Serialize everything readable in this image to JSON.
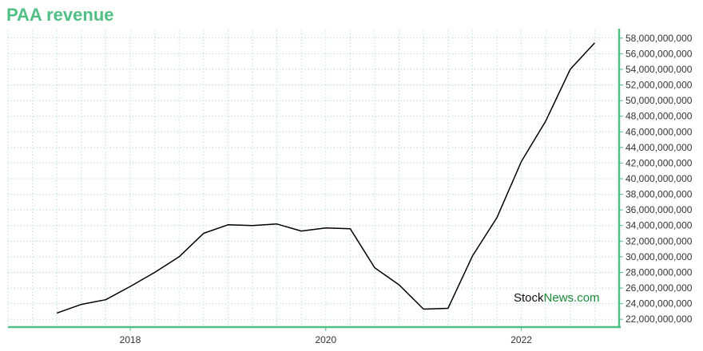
{
  "title": "PAA revenue",
  "watermark": {
    "part1": "Stock",
    "part2": "News.com"
  },
  "colors": {
    "axis": "#4fbf84",
    "grid": "#9fd9cf",
    "line": "#000000",
    "title": "#4fbf84"
  },
  "chart_data": {
    "type": "line",
    "title": "PAA revenue",
    "xlabel": "",
    "ylabel": "",
    "x_tick_labels": [
      "2018",
      "2020",
      "2022"
    ],
    "x_ticks": [
      2018.0,
      2020.0,
      2022.0
    ],
    "xlim": [
      2016.75,
      2023.0
    ],
    "ylim": [
      21000000000,
      59000000000
    ],
    "y_ticks": [
      22000000000,
      24000000000,
      26000000000,
      28000000000,
      30000000000,
      32000000000,
      34000000000,
      36000000000,
      38000000000,
      40000000000,
      42000000000,
      44000000000,
      46000000000,
      48000000000,
      50000000000,
      52000000000,
      54000000000,
      56000000000,
      58000000000
    ],
    "y_tick_labels": [
      "22,000,000,000",
      "24,000,000,000",
      "26,000,000,000",
      "28,000,000,000",
      "30,000,000,000",
      "32,000,000,000",
      "34,000,000,000",
      "36,000,000,000",
      "38,000,000,000",
      "40,000,000,000",
      "42,000,000,000",
      "44,000,000,000",
      "46,000,000,000",
      "48,000,000,000",
      "50,000,000,000",
      "52,000,000,000",
      "54,000,000,000",
      "56,000,000,000",
      "58,000,000,000"
    ],
    "y_axis_position": "right",
    "grid": true,
    "series": [
      {
        "x": [
          2017.25,
          2017.5,
          2017.75,
          2018.0,
          2018.25,
          2018.5,
          2018.75,
          2019.0,
          2019.25,
          2019.5,
          2019.75,
          2020.0,
          2020.25,
          2020.5,
          2020.75,
          2021.0,
          2021.25,
          2021.5,
          2021.75,
          2022.0,
          2022.25,
          2022.5,
          2022.75
        ],
        "values": [
          22800000000,
          23900000000,
          24500000000,
          26200000000,
          28000000000,
          30000000000,
          33000000000,
          34100000000,
          34000000000,
          34200000000,
          33300000000,
          33700000000,
          33600000000,
          28600000000,
          26400000000,
          23300000000,
          23400000000,
          30100000000,
          35000000000,
          42200000000,
          47400000000,
          54000000000,
          57400000000
        ]
      }
    ]
  }
}
